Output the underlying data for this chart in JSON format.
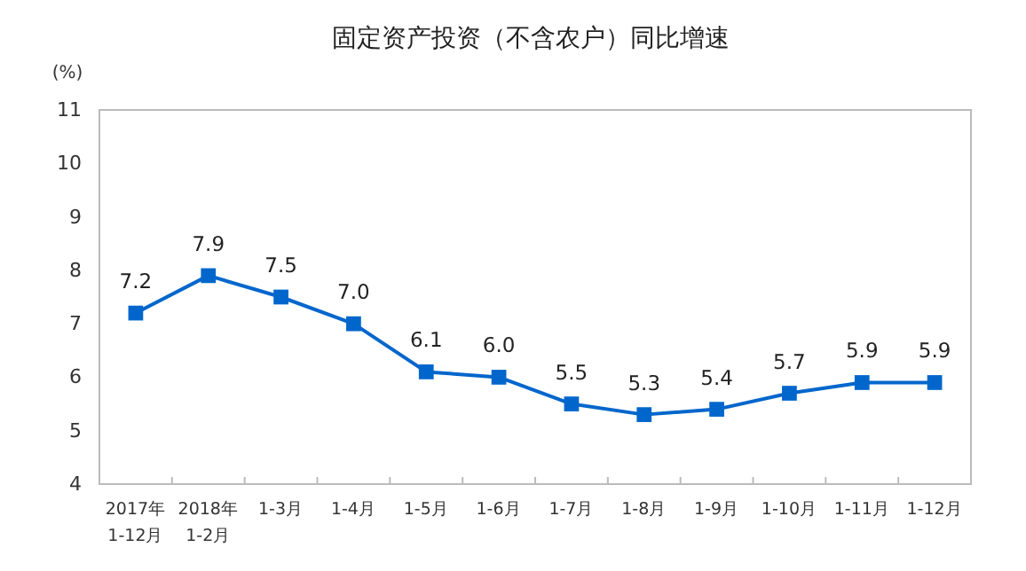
{
  "chart_data": {
    "type": "line",
    "title": "固定资产投资（不含农户）同比增速",
    "ylabel": "(%)",
    "categories": [
      "2017年\n1-12月",
      "2018年\n1-2月",
      "1-3月",
      "1-4月",
      "1-5月",
      "1-6月",
      "1-7月",
      "1-8月",
      "1-9月",
      "1-10月",
      "1-11月",
      "1-12月"
    ],
    "series": [
      {
        "color": "#0066cc",
        "values": [
          7.2,
          7.9,
          7.5,
          7.0,
          6.1,
          6.0,
          5.5,
          5.3,
          5.4,
          5.7,
          5.9,
          5.9
        ],
        "value_labels": [
          "7.2",
          "7.9",
          "7.5",
          "7.0",
          "6.1",
          "6.0",
          "5.5",
          "5.3",
          "5.4",
          "5.7",
          "5.9",
          "5.9"
        ]
      }
    ],
    "ylim": [
      4,
      11
    ],
    "yticks": [
      4,
      5,
      6,
      7,
      8,
      9,
      10,
      11
    ],
    "marker": "square",
    "grid": false
  }
}
